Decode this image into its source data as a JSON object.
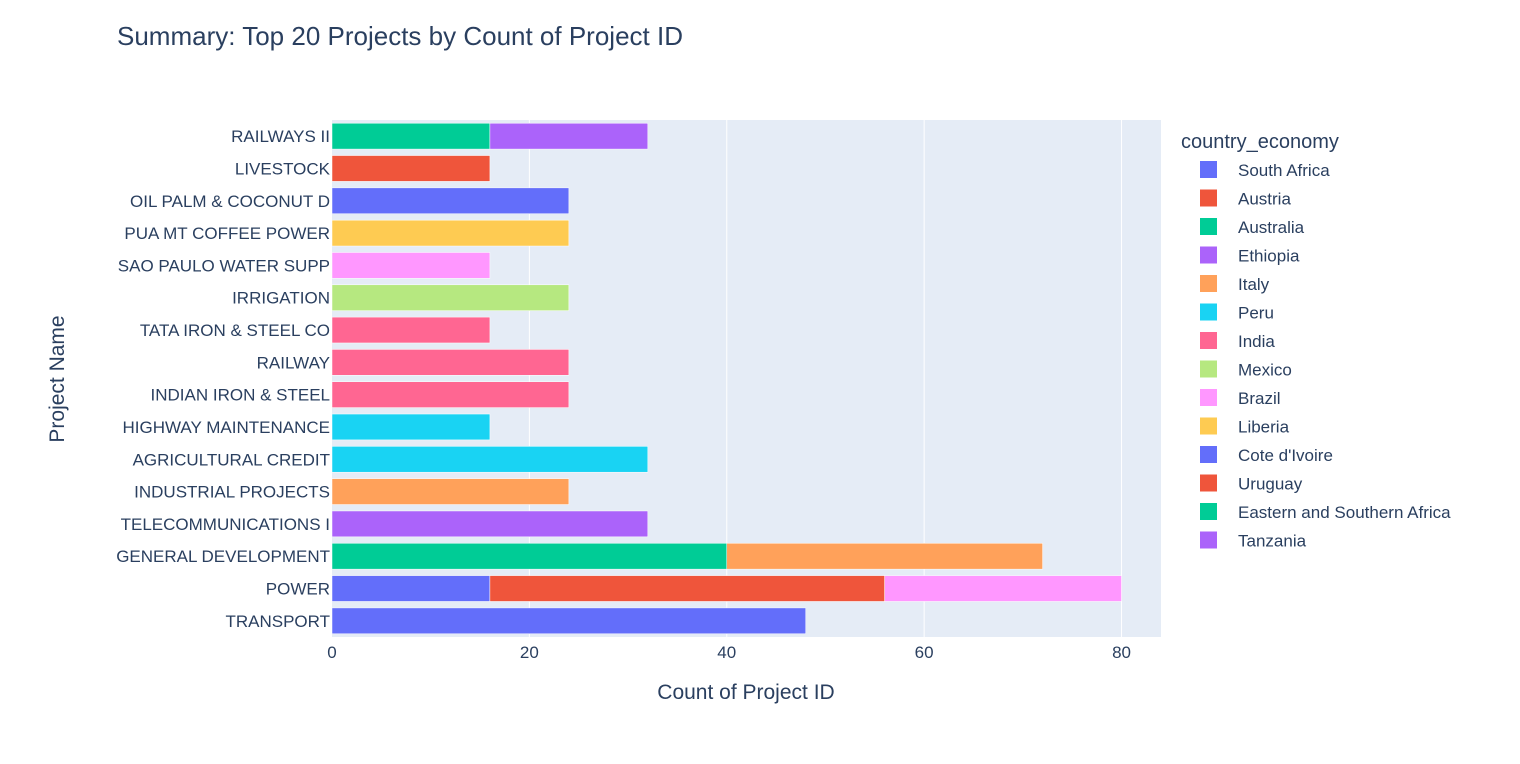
{
  "chart_data": {
    "type": "bar",
    "orientation": "horizontal",
    "barmode": "stack",
    "title": "Summary: Top 20 Projects by Count of Project ID",
    "xlabel": "Count of Project ID",
    "ylabel": "Project Name",
    "xlim": [
      0,
      84
    ],
    "xticks": [
      0,
      20,
      40,
      60,
      80
    ],
    "grid": true,
    "legend_title": "country_economy",
    "legend_position": "right",
    "categories": [
      "RAILWAYS II",
      "LIVESTOCK",
      "OIL PALM & COCONUT D",
      "PUA MT COFFEE POWER",
      "SAO PAULO WATER SUPP",
      "IRRIGATION",
      "TATA IRON & STEEL CO",
      "RAILWAY",
      "INDIAN IRON & STEEL",
      "HIGHWAY MAINTENANCE",
      "AGRICULTURAL CREDIT",
      "INDUSTRIAL PROJECTS",
      "TELECOMMUNICATIONS I",
      "GENERAL DEVELOPMENT",
      "POWER",
      "TRANSPORT"
    ],
    "series": [
      {
        "name": "South Africa",
        "color": "#636efa",
        "points": [
          {
            "category": "POWER",
            "value": 16
          },
          {
            "category": "TRANSPORT",
            "value": 48
          }
        ]
      },
      {
        "name": "Austria",
        "color": "#EF553B",
        "points": [
          {
            "category": "POWER",
            "value": 40
          }
        ]
      },
      {
        "name": "Australia",
        "color": "#00cc96",
        "points": [
          {
            "category": "GENERAL DEVELOPMENT",
            "value": 40
          }
        ]
      },
      {
        "name": "Ethiopia",
        "color": "#ab63fa",
        "points": [
          {
            "category": "TELECOMMUNICATIONS I",
            "value": 32
          }
        ]
      },
      {
        "name": "Italy",
        "color": "#FFA15A",
        "points": [
          {
            "category": "GENERAL DEVELOPMENT",
            "value": 32
          },
          {
            "category": "INDUSTRIAL PROJECTS",
            "value": 24
          }
        ]
      },
      {
        "name": "Peru",
        "color": "#19d3f3",
        "points": [
          {
            "category": "HIGHWAY MAINTENANCE",
            "value": 16
          },
          {
            "category": "AGRICULTURAL CREDIT",
            "value": 32
          }
        ]
      },
      {
        "name": "India",
        "color": "#FF6692",
        "points": [
          {
            "category": "TATA IRON & STEEL CO",
            "value": 16
          },
          {
            "category": "RAILWAY",
            "value": 24
          },
          {
            "category": "INDIAN IRON & STEEL",
            "value": 24
          }
        ]
      },
      {
        "name": "Mexico",
        "color": "#B6E880",
        "points": [
          {
            "category": "IRRIGATION",
            "value": 24
          }
        ]
      },
      {
        "name": "Brazil",
        "color": "#FF97FF",
        "points": [
          {
            "category": "POWER",
            "value": 24
          },
          {
            "category": "SAO PAULO WATER SUPP",
            "value": 16
          }
        ]
      },
      {
        "name": "Liberia",
        "color": "#FECB52",
        "points": [
          {
            "category": "PUA MT COFFEE POWER",
            "value": 24
          }
        ]
      },
      {
        "name": "Cote d'Ivoire",
        "color": "#636efa",
        "points": [
          {
            "category": "OIL PALM & COCONUT D",
            "value": 24
          }
        ]
      },
      {
        "name": "Uruguay",
        "color": "#EF553B",
        "points": [
          {
            "category": "LIVESTOCK",
            "value": 16
          }
        ]
      },
      {
        "name": "Eastern and Southern Africa",
        "color": "#00cc96",
        "points": [
          {
            "category": "RAILWAYS II",
            "value": 16
          }
        ]
      },
      {
        "name": "Tanzania",
        "color": "#ab63fa",
        "points": [
          {
            "category": "RAILWAYS II",
            "value": 16
          }
        ]
      }
    ]
  }
}
